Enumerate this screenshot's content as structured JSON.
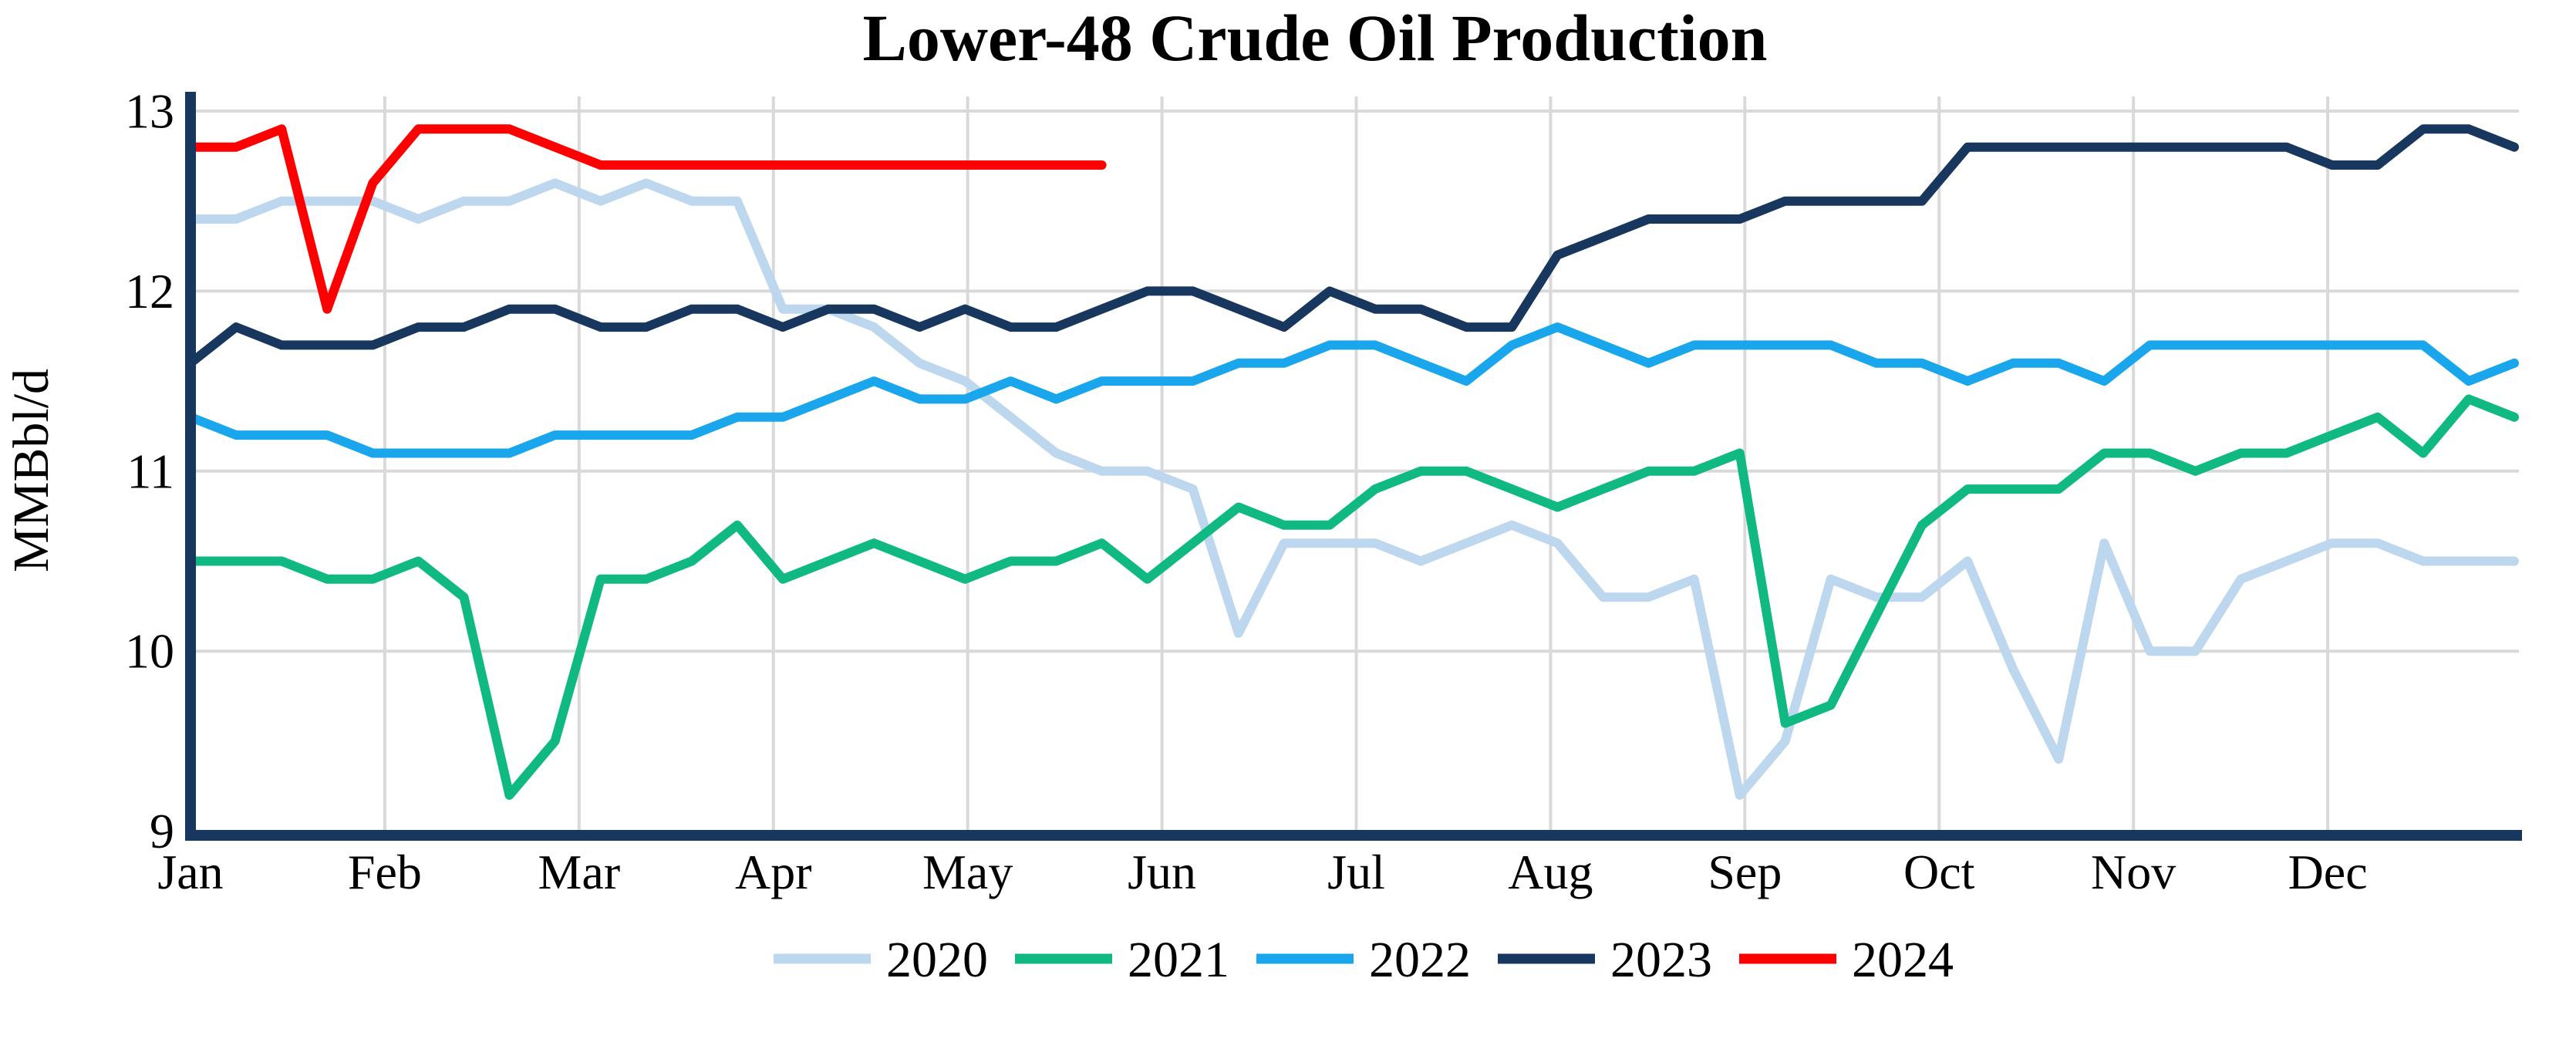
{
  "chart_data": {
    "type": "line",
    "title": "Lower-48 Crude Oil Production",
    "ylabel": "MMBbl/d",
    "x_tick_labels": [
      "Jan",
      "Feb",
      "Mar",
      "Apr",
      "May",
      "Jun",
      "Jul",
      "Aug",
      "Sep",
      "Oct",
      "Nov",
      "Dec"
    ],
    "y_ticks": [
      9,
      10,
      11,
      12,
      13
    ],
    "ylim": [
      9,
      13
    ],
    "points_per_year": 52,
    "grid": true,
    "legend_position": "bottom-center",
    "axis_color": "#17375E",
    "grid_color": "#D9D9D9",
    "background_color": "#FFFFFF",
    "series": [
      {
        "name": "2020",
        "color": "#BDD7EE",
        "values": [
          12.4,
          12.4,
          12.5,
          12.5,
          12.5,
          12.4,
          12.5,
          12.5,
          12.6,
          12.5,
          12.6,
          12.5,
          12.5,
          11.9,
          11.9,
          11.8,
          11.6,
          11.5,
          11.3,
          11.1,
          11.0,
          11.0,
          10.9,
          10.1,
          10.6,
          10.6,
          10.6,
          10.5,
          10.6,
          10.7,
          10.6,
          10.3,
          10.3,
          10.4,
          9.2,
          9.5,
          10.4,
          10.3,
          10.3,
          10.5,
          9.9,
          9.4,
          10.6,
          10.0,
          10.0,
          10.4,
          10.5,
          10.6,
          10.6,
          10.5,
          10.5,
          10.5
        ]
      },
      {
        "name": "2021",
        "color": "#10B981",
        "values": [
          10.5,
          10.5,
          10.5,
          10.4,
          10.4,
          10.5,
          10.3,
          9.2,
          9.5,
          10.4,
          10.4,
          10.5,
          10.7,
          10.4,
          10.5,
          10.6,
          10.5,
          10.4,
          10.5,
          10.5,
          10.6,
          10.4,
          10.6,
          10.8,
          10.7,
          10.7,
          10.9,
          11.0,
          11.0,
          10.9,
          10.8,
          10.9,
          11.0,
          11.0,
          11.1,
          9.6,
          9.7,
          10.2,
          10.7,
          10.9,
          10.9,
          10.9,
          11.1,
          11.1,
          11.0,
          11.1,
          11.1,
          11.2,
          11.3,
          11.1,
          11.4,
          11.3
        ]
      },
      {
        "name": "2022",
        "color": "#1AA6EC",
        "values": [
          11.3,
          11.2,
          11.2,
          11.2,
          11.1,
          11.1,
          11.1,
          11.1,
          11.2,
          11.2,
          11.2,
          11.2,
          11.3,
          11.3,
          11.4,
          11.5,
          11.4,
          11.4,
          11.5,
          11.4,
          11.5,
          11.5,
          11.5,
          11.6,
          11.6,
          11.7,
          11.7,
          11.6,
          11.5,
          11.7,
          11.8,
          11.7,
          11.6,
          11.7,
          11.7,
          11.7,
          11.7,
          11.6,
          11.6,
          11.5,
          11.6,
          11.6,
          11.5,
          11.7,
          11.7,
          11.7,
          11.7,
          11.7,
          11.7,
          11.7,
          11.5,
          11.6
        ]
      },
      {
        "name": "2023",
        "color": "#17375E",
        "values": [
          11.6,
          11.8,
          11.7,
          11.7,
          11.7,
          11.8,
          11.8,
          11.9,
          11.9,
          11.8,
          11.8,
          11.9,
          11.9,
          11.8,
          11.9,
          11.9,
          11.8,
          11.9,
          11.8,
          11.8,
          11.9,
          12.0,
          12.0,
          11.9,
          11.8,
          12.0,
          11.9,
          11.9,
          11.8,
          11.8,
          12.2,
          12.3,
          12.4,
          12.4,
          12.4,
          12.5,
          12.5,
          12.5,
          12.5,
          12.8,
          12.8,
          12.8,
          12.8,
          12.8,
          12.8,
          12.8,
          12.8,
          12.7,
          12.7,
          12.9,
          12.9,
          12.8
        ]
      },
      {
        "name": "2024",
        "color": "#FE0000",
        "values": [
          12.8,
          12.8,
          12.9,
          11.9,
          12.6,
          12.9,
          12.9,
          12.9,
          12.8,
          12.7,
          12.7,
          12.7,
          12.7,
          12.7,
          12.7,
          12.7,
          12.7,
          12.7,
          12.7,
          12.7,
          12.7
        ]
      }
    ]
  }
}
